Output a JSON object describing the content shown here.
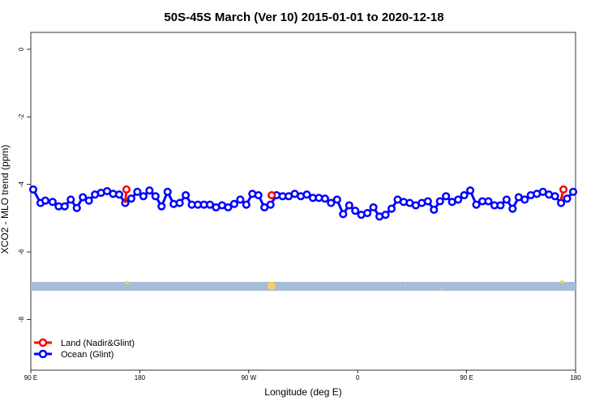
{
  "chart_data": {
    "type": "line",
    "title": "50S-45S March (Ver 10)   2015-01-01 to 2020-12-18",
    "xlabel": "Longitude (deg E)",
    "ylabel": "XCO2 - MLO trend (ppm)",
    "x_ticks": [
      {
        "value": 90,
        "label": "90 E"
      },
      {
        "value": 180,
        "label": "180"
      },
      {
        "value": 270,
        "label": "90 W"
      },
      {
        "value": 360,
        "label": "0"
      },
      {
        "value": 450,
        "label": "90 E"
      },
      {
        "value": 540,
        "label": "180"
      }
    ],
    "xlim": [
      90,
      540
    ],
    "y_ticks": [
      0,
      -2,
      -4,
      -6,
      -8
    ],
    "ylim": [
      -9.5,
      0.5
    ],
    "grid": false,
    "legend_position": "bottom-left",
    "series": [
      {
        "name": "Land (Nadir&Glint)",
        "color": "#ff0000",
        "segments": [
          {
            "x": [
              168,
              169
            ],
            "y": [
              -4.55,
              -4.15
            ]
          },
          {
            "x": [
              286,
              289
            ],
            "y": [
              -4.38,
              -4.32
            ]
          },
          {
            "x": [
              528,
              530
            ],
            "y": [
              -4.45,
              -4.15
            ]
          }
        ]
      },
      {
        "name": "Ocean (Glint)",
        "color": "#0000ff",
        "x": [
          92,
          98,
          102,
          108,
          113,
          118,
          123,
          128,
          133,
          138,
          143,
          148,
          153,
          158,
          163,
          168,
          173,
          178,
          183,
          188,
          193,
          198,
          203,
          208,
          213,
          218,
          223,
          228,
          233,
          238,
          243,
          248,
          253,
          258,
          263,
          268,
          273,
          278,
          283,
          288,
          293,
          298,
          303,
          308,
          313,
          318,
          323,
          328,
          333,
          338,
          343,
          348,
          353,
          358,
          363,
          368,
          373,
          378,
          383,
          388,
          393,
          398,
          403,
          408,
          413,
          418,
          423,
          428,
          433,
          438,
          443,
          448,
          453,
          458,
          463,
          468,
          473,
          478,
          483,
          488,
          493,
          498,
          503,
          508,
          513,
          518,
          523,
          528,
          533,
          538
        ],
        "y": [
          -4.15,
          -4.55,
          -4.48,
          -4.52,
          -4.65,
          -4.65,
          -4.45,
          -4.7,
          -4.38,
          -4.48,
          -4.3,
          -4.25,
          -4.2,
          -4.28,
          -4.3,
          -4.55,
          -4.42,
          -4.22,
          -4.35,
          -4.18,
          -4.35,
          -4.65,
          -4.22,
          -4.58,
          -4.55,
          -4.32,
          -4.6,
          -4.6,
          -4.6,
          -4.6,
          -4.68,
          -4.62,
          -4.68,
          -4.58,
          -4.45,
          -4.6,
          -4.28,
          -4.32,
          -4.68,
          -4.6,
          -4.32,
          -4.35,
          -4.35,
          -4.28,
          -4.35,
          -4.3,
          -4.4,
          -4.4,
          -4.42,
          -4.55,
          -4.45,
          -4.88,
          -4.62,
          -4.78,
          -4.9,
          -4.85,
          -4.68,
          -4.95,
          -4.9,
          -4.72,
          -4.45,
          -4.52,
          -4.55,
          -4.62,
          -4.55,
          -4.5,
          -4.75,
          -4.5,
          -4.35,
          -4.52,
          -4.45,
          -4.32,
          -4.18,
          -4.6,
          -4.5,
          -4.5,
          -4.62,
          -4.62,
          -4.45,
          -4.72,
          -4.38,
          -4.45,
          -4.32,
          -4.28,
          -4.22,
          -4.3,
          -4.35,
          -4.55,
          -4.42,
          -4.22
        ]
      }
    ]
  }
}
